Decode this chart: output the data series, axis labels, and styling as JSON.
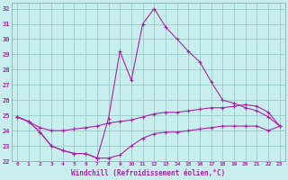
{
  "xlabel": "Windchill (Refroidissement éolien,°C)",
  "bg_color": "#c8eeed",
  "grid_color": "#99cccc",
  "line_color": "#aa22aa",
  "hours": [
    0,
    1,
    2,
    3,
    4,
    5,
    6,
    7,
    8,
    9,
    10,
    11,
    12,
    13,
    14,
    15,
    16,
    17,
    18,
    19,
    20,
    21,
    22,
    23
  ],
  "line1": [
    24.9,
    24.6,
    23.9,
    23.0,
    22.7,
    22.5,
    22.5,
    22.2,
    24.8,
    29.2,
    27.3,
    31.0,
    32.0,
    30.8,
    30.0,
    29.2,
    28.5,
    27.2,
    26.0,
    25.8,
    25.5,
    25.3,
    24.9,
    24.3
  ],
  "line2": [
    24.9,
    24.6,
    24.2,
    24.0,
    24.0,
    24.1,
    24.2,
    24.3,
    24.5,
    24.6,
    24.7,
    24.9,
    25.1,
    25.2,
    25.2,
    25.3,
    25.4,
    25.5,
    25.5,
    25.6,
    25.7,
    25.6,
    25.2,
    24.3
  ],
  "line3": [
    24.9,
    24.6,
    23.9,
    23.0,
    22.7,
    22.5,
    22.5,
    22.2,
    22.2,
    22.4,
    23.0,
    23.5,
    23.8,
    23.9,
    23.9,
    24.0,
    24.1,
    24.2,
    24.3,
    24.3,
    24.3,
    24.3,
    24.0,
    24.3
  ],
  "ylim": [
    22,
    32.4
  ],
  "yticks": [
    22,
    23,
    24,
    25,
    26,
    27,
    28,
    29,
    30,
    31,
    32
  ],
  "xticks": [
    0,
    1,
    2,
    3,
    4,
    5,
    6,
    7,
    8,
    9,
    10,
    11,
    12,
    13,
    14,
    15,
    16,
    17,
    18,
    19,
    20,
    21,
    22,
    23
  ]
}
